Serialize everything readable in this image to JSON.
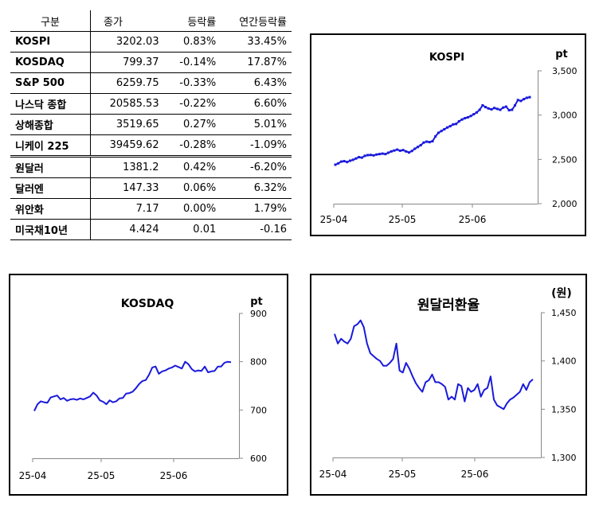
{
  "table": {
    "headers": [
      "구분",
      "종가",
      "등락률",
      "연간등락률"
    ],
    "rows": [
      {
        "name": "KOSPI",
        "close": "3202.03",
        "change": "0.83%",
        "annual": "33.45%"
      },
      {
        "name": "KOSDAQ",
        "close": "799.37",
        "change": "-0.14%",
        "annual": "17.87%"
      },
      {
        "name": "S&P 500",
        "close": "6259.75",
        "change": "-0.33%",
        "annual": "6.43%"
      },
      {
        "name": "나스닥 종합",
        "close": "20585.53",
        "change": "-0.22%",
        "annual": "6.60%"
      },
      {
        "name": "상해종합",
        "close": "3519.65",
        "change": "0.27%",
        "annual": "5.01%"
      },
      {
        "name": "니케이 225",
        "close": "39459.62",
        "change": "-0.28%",
        "annual": "-1.09%"
      },
      {
        "name": "원달러",
        "close": "1381.2",
        "change": "0.42%",
        "annual": "-6.20%"
      },
      {
        "name": "달러엔",
        "close": "147.33",
        "change": "0.06%",
        "annual": "6.32%"
      },
      {
        "name": "위안화",
        "close": "7.17",
        "change": "0.00%",
        "annual": "1.79%"
      },
      {
        "name": "미국채10년",
        "close": "4.424",
        "change": "0.01",
        "annual": "-0.16"
      }
    ]
  },
  "chart_data": [
    {
      "type": "line",
      "title": "KOSPI",
      "ylabel": "pt",
      "ylim": [
        2000,
        3500
      ],
      "yticks": [
        "2,000",
        "2,500",
        "3,000",
        "3,500"
      ],
      "xticks": [
        "25-04",
        "25-05",
        "25-06"
      ],
      "markers": true,
      "color": "#1a1adc",
      "series": [
        {
          "values": [
            2440,
            2455,
            2475,
            2480,
            2470,
            2485,
            2495,
            2510,
            2525,
            2520,
            2540,
            2548,
            2550,
            2545,
            2555,
            2560,
            2565,
            2560,
            2575,
            2590,
            2600,
            2610,
            2598,
            2605,
            2590,
            2578,
            2595,
            2620,
            2640,
            2660,
            2690,
            2700,
            2695,
            2705,
            2760,
            2800,
            2820,
            2840,
            2860,
            2875,
            2895,
            2900,
            2930,
            2950,
            2965,
            2975,
            2990,
            3010,
            3030,
            3060,
            3110,
            3090,
            3075,
            3065,
            3080,
            3070,
            3060,
            3085,
            3095,
            3055,
            3060,
            3110,
            3170,
            3160,
            3180,
            3195,
            3202
          ]
        }
      ]
    },
    {
      "type": "line",
      "title": "KOSDAQ",
      "ylabel": "pt",
      "ylim": [
        600,
        900
      ],
      "yticks": [
        "600",
        "700",
        "800",
        "900"
      ],
      "xticks": [
        "25-04",
        "25-05",
        "25-06"
      ],
      "markers": false,
      "color": "#1a1adc",
      "series": [
        {
          "values": [
            698,
            712,
            718,
            716,
            715,
            726,
            728,
            730,
            722,
            725,
            719,
            722,
            723,
            721,
            724,
            722,
            725,
            728,
            736,
            730,
            720,
            717,
            712,
            720,
            716,
            718,
            724,
            725,
            734,
            735,
            738,
            745,
            754,
            760,
            762,
            773,
            788,
            790,
            775,
            780,
            782,
            786,
            788,
            792,
            789,
            786,
            800,
            795,
            785,
            780,
            782,
            781,
            790,
            778,
            780,
            781,
            790,
            790,
            798,
            800,
            799
          ]
        }
      ]
    },
    {
      "type": "line",
      "title": "원달러환율",
      "ylabel": "(원)",
      "ylim": [
        1300,
        1450
      ],
      "yticks": [
        "1,300",
        "1,350",
        "1,400",
        "1,450"
      ],
      "xticks": [
        "25-04",
        "25-05",
        "25-06"
      ],
      "markers": false,
      "color": "#1a1adc",
      "series": [
        {
          "values": [
            1428,
            1418,
            1423,
            1420,
            1418,
            1423,
            1436,
            1438,
            1442,
            1435,
            1418,
            1408,
            1405,
            1402,
            1400,
            1395,
            1395,
            1398,
            1402,
            1418,
            1390,
            1388,
            1398,
            1392,
            1384,
            1377,
            1372,
            1368,
            1378,
            1380,
            1386,
            1378,
            1378,
            1376,
            1373,
            1360,
            1363,
            1360,
            1376,
            1374,
            1358,
            1372,
            1368,
            1370,
            1376,
            1363,
            1370,
            1372,
            1384,
            1360,
            1354,
            1352,
            1350,
            1356,
            1360,
            1362,
            1365,
            1368,
            1376,
            1370,
            1378,
            1381
          ]
        }
      ]
    }
  ]
}
